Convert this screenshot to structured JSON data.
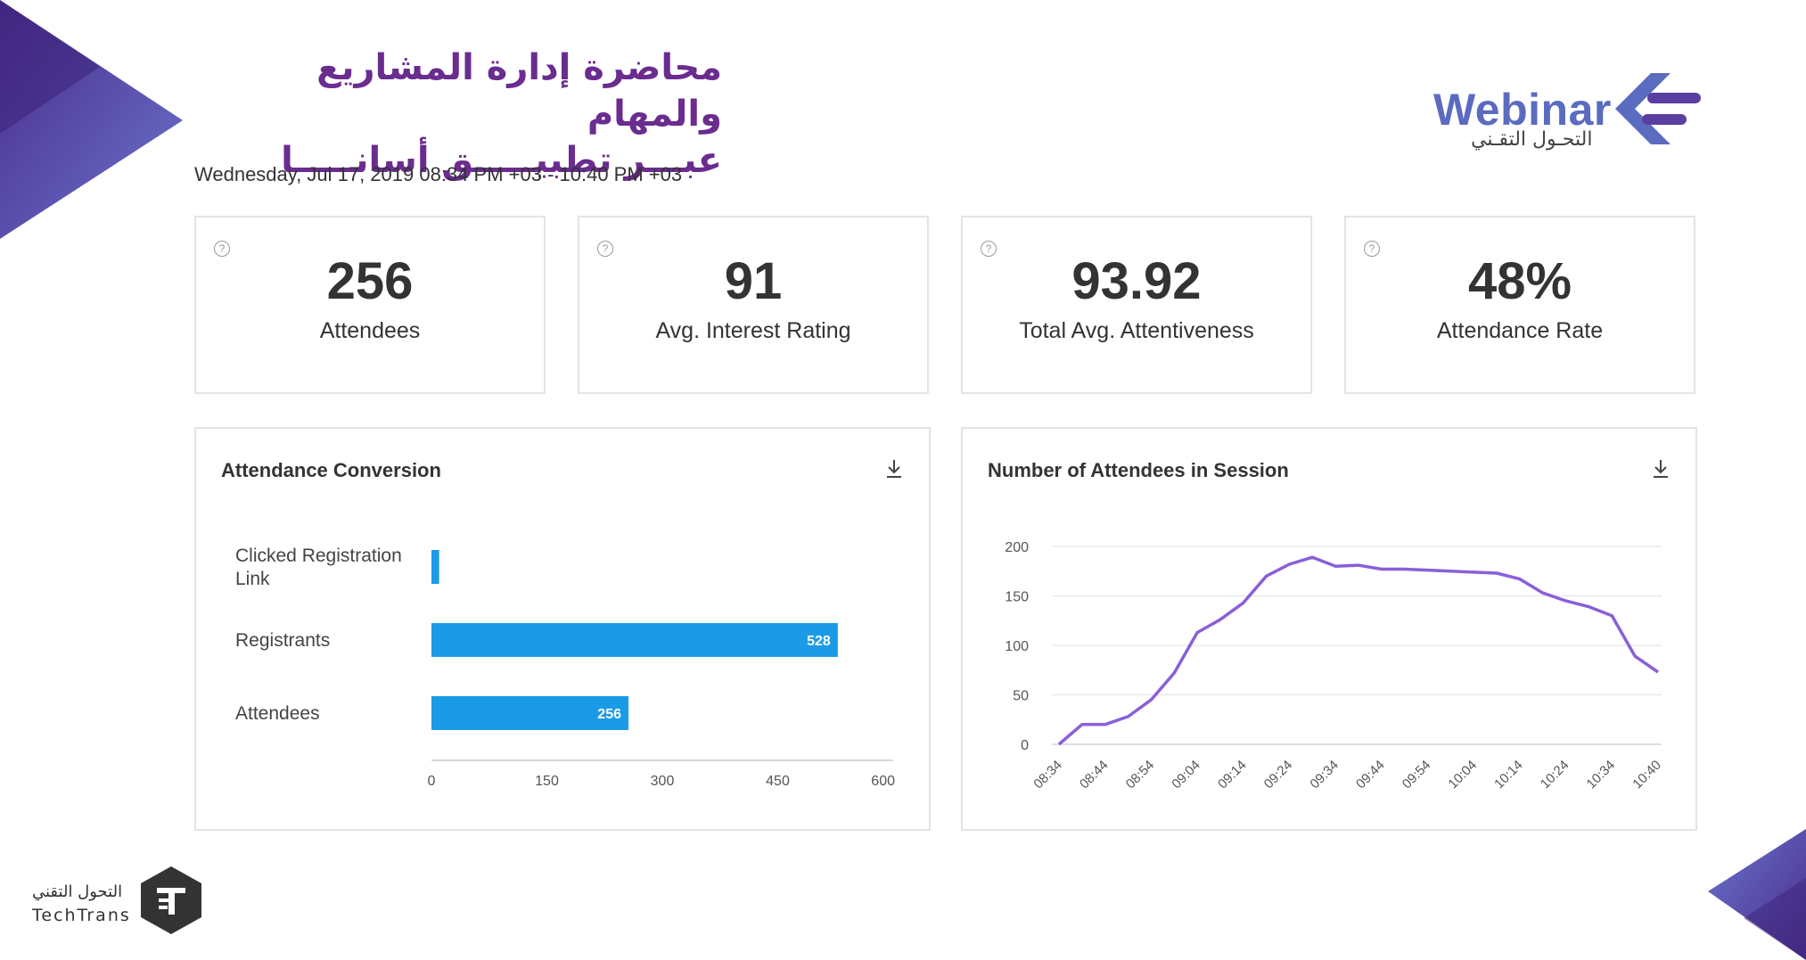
{
  "title": {
    "line1": "محاضرة إدارة المشاريع والمهام",
    "line2": "عبـــر تطبيـــــق أسانـــــا"
  },
  "date_range": "Wednesday, Jul 17, 2019 08:34 PM +03 - 10:40 PM +03",
  "brand": {
    "word": "Webinar",
    "arabic": "التحـول التقـني",
    "bottom_arabic": "التحول التقني",
    "bottom_english": "TechTrans"
  },
  "stats": [
    {
      "value": "256",
      "label": "Attendees"
    },
    {
      "value": "91",
      "label": "Avg. Interest Rating"
    },
    {
      "value": "93.92",
      "label": "Total Avg. Attentiveness"
    },
    {
      "value": "48%",
      "label": "Attendance Rate"
    }
  ],
  "colors": {
    "bar": "#1b9be6",
    "line": "#8a5fd8",
    "title": "#6a2c8f",
    "accent_purple": "#5b3fa0"
  },
  "icons": [
    "help-icon",
    "download-icon",
    "webinar-logo-icon",
    "techtrans-logo-icon"
  ],
  "panels": {
    "conversion_title": "Attendance Conversion",
    "session_title": "Number of Attendees in Session"
  },
  "chart_data": [
    {
      "type": "bar",
      "orientation": "horizontal",
      "title": "Attendance Conversion",
      "categories": [
        "Clicked Registration Link",
        "Registrants",
        "Attendees"
      ],
      "category_lines": [
        [
          "Clicked Registration",
          "Link"
        ],
        [
          "Registrants"
        ],
        [
          "Attendees"
        ]
      ],
      "values": [
        10,
        528,
        256
      ],
      "data_labels": [
        "",
        "528",
        "256"
      ],
      "xlim": [
        0,
        600
      ],
      "xticks": [
        0,
        150,
        300,
        450,
        600
      ],
      "grid": false
    },
    {
      "type": "line",
      "title": "Number of Attendees in Session",
      "x": [
        "08:34",
        "08:39",
        "08:44",
        "08:49",
        "08:54",
        "08:59",
        "09:04",
        "09:09",
        "09:14",
        "09:19",
        "09:24",
        "09:29",
        "09:34",
        "09:39",
        "09:44",
        "09:49",
        "09:54",
        "09:59",
        "10:04",
        "10:09",
        "10:14",
        "10:19",
        "10:24",
        "10:29",
        "10:34",
        "10:39",
        "10:40"
      ],
      "values": [
        0,
        20,
        20,
        28,
        45,
        72,
        113,
        126,
        143,
        170,
        182,
        189,
        180,
        181,
        177,
        177,
        176,
        175,
        174,
        173,
        167,
        153,
        145,
        139,
        130,
        89,
        73
      ],
      "xticks": [
        "08:34",
        "08:44",
        "08:54",
        "09:04",
        "09:14",
        "09:24",
        "09:34",
        "09:44",
        "09:54",
        "10:04",
        "10:14",
        "10:24",
        "10:34",
        "10:40"
      ],
      "yticks": [
        0,
        50,
        100,
        150,
        200
      ],
      "ylim": [
        0,
        200
      ],
      "grid": true
    }
  ]
}
